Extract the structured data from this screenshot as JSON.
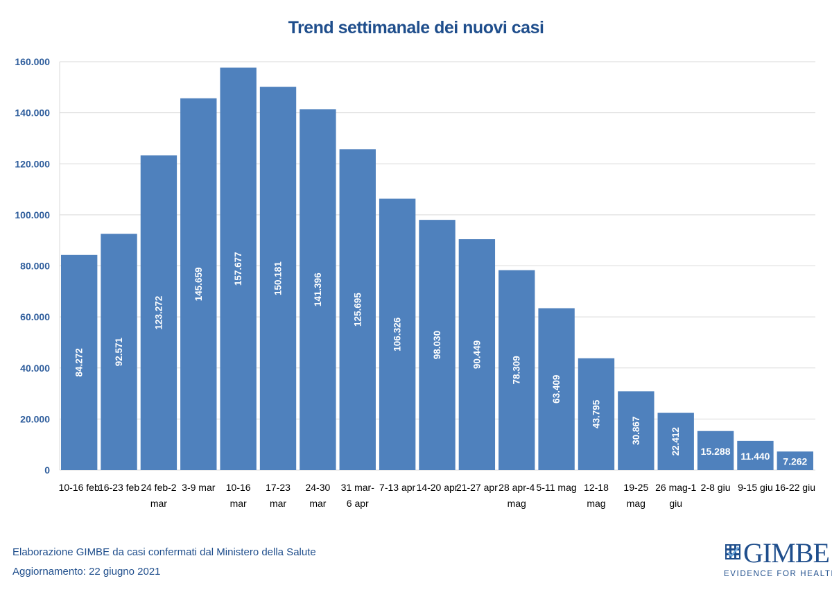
{
  "chart_data": {
    "type": "bar",
    "title": "Trend settimanale dei nuovi casi",
    "categories": [
      [
        "10-16 feb"
      ],
      [
        "16-23 feb"
      ],
      [
        "24 feb-2",
        "mar"
      ],
      [
        "3-9 mar"
      ],
      [
        "10-16",
        "mar"
      ],
      [
        "17-23",
        "mar"
      ],
      [
        "24-30",
        "mar"
      ],
      [
        "31 mar-",
        "6 apr"
      ],
      [
        "7-13 apr"
      ],
      [
        "14-20 apr"
      ],
      [
        "21-27 apr"
      ],
      [
        "28 apr-4",
        "mag"
      ],
      [
        "5-11 mag"
      ],
      [
        "12-18",
        "mag"
      ],
      [
        "19-25",
        "mag"
      ],
      [
        "26 mag-1",
        "giu"
      ],
      [
        "2-8 giu"
      ],
      [
        "9-15 giu"
      ],
      [
        "16-22 giu"
      ]
    ],
    "values": [
      84272,
      92571,
      123272,
      145659,
      157677,
      150181,
      141396,
      125695,
      106326,
      98030,
      90449,
      78309,
      63409,
      43795,
      30867,
      22412,
      15288,
      11440,
      7262
    ],
    "value_labels": [
      "84.272",
      "92.571",
      "123.272",
      "145.659",
      "157.677",
      "150.181",
      "141.396",
      "125.695",
      "106.326",
      "98.030",
      "90.449",
      "78.309",
      "63.409",
      "43.795",
      "30.867",
      "22.412",
      "15.288",
      "11.440",
      "7.262"
    ],
    "ylim": [
      0,
      160000
    ],
    "yticks": [
      0,
      20000,
      40000,
      60000,
      80000,
      100000,
      120000,
      140000,
      160000
    ],
    "ytick_labels": [
      "0",
      "20.000",
      "40.000",
      "60.000",
      "80.000",
      "100.000",
      "120.000",
      "140.000",
      "160.000"
    ],
    "grid": true,
    "colors": {
      "bar": "#4f81bd",
      "grid": "#d9d9d9",
      "title": "#1f4e8c"
    }
  },
  "footer": {
    "line1": "Elaborazione GIMBE da casi confermati dal Ministero della Salute",
    "line2": "Aggiornamento: 22 giugno 2021"
  },
  "logo": {
    "name": "GIMBE",
    "tagline": "EVIDENCE FOR HEALTH",
    "icon": "gimbe-grid-logo-icon"
  }
}
